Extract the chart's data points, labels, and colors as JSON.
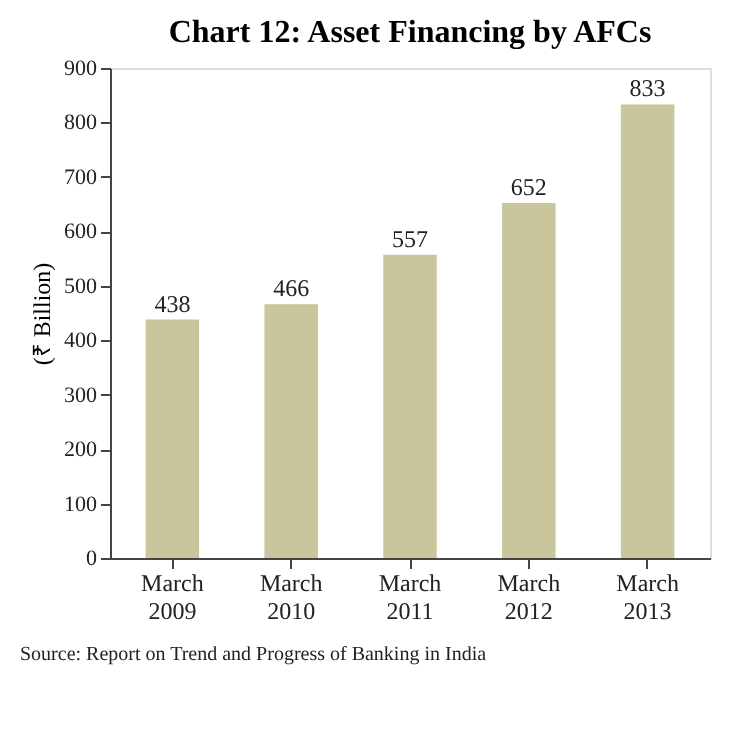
{
  "chart_data": {
    "type": "bar",
    "title": "Chart 12: Asset Financing by AFCs",
    "ylabel": "(₹ Billion)",
    "categories": [
      "March 2009",
      "March 2010",
      "March 2011",
      "March 2012",
      "March 2013"
    ],
    "values": [
      438,
      466,
      557,
      652,
      833
    ],
    "color": "#c9c59c",
    "ylim": [
      0,
      900
    ],
    "yticks": [
      0,
      100,
      200,
      300,
      400,
      500,
      600,
      700,
      800,
      900
    ],
    "grid": false,
    "data_labels": true,
    "annotations": [
      "Source: Report on Trend and Progress of Banking in India"
    ]
  }
}
